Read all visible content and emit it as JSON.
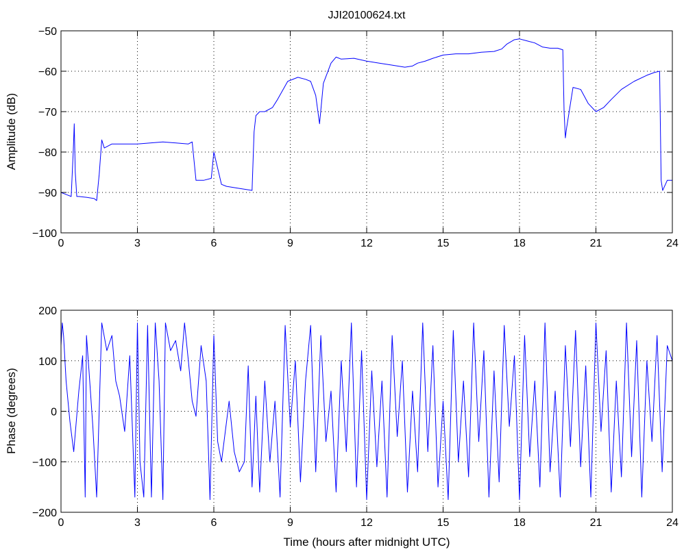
{
  "chart_data": [
    {
      "type": "line",
      "title": "JJI20100624.txt",
      "xlabel": "",
      "ylabel": "Amplitude (dB)",
      "xlim": [
        0,
        24
      ],
      "ylim": [
        -100,
        -50
      ],
      "xticks": [
        0,
        3,
        6,
        9,
        12,
        15,
        18,
        21,
        24
      ],
      "yticks": [
        -100,
        -90,
        -80,
        -70,
        -60,
        -50
      ],
      "xtick_labels": [
        "0",
        "3",
        "6",
        "9",
        "12",
        "15",
        "18",
        "21",
        "24"
      ],
      "ytick_labels": [
        "−100",
        "−90",
        "−80",
        "−70",
        "−60",
        "−50"
      ],
      "grid": true,
      "color": "#0000ff",
      "series": [
        {
          "x": [
            0,
            0.2,
            0.4,
            0.48,
            0.52,
            0.56,
            0.62,
            0.7,
            1.0,
            1.3,
            1.4,
            1.5,
            1.6,
            1.7,
            2.0,
            3.0,
            4.0,
            5.0,
            5.15,
            5.3,
            5.6,
            5.9,
            6.0,
            6.3,
            6.5,
            7.0,
            7.5,
            7.58,
            7.65,
            7.8,
            8.0,
            8.3,
            8.5,
            8.9,
            9.3,
            9.6,
            9.8,
            10.0,
            10.15,
            10.3,
            10.6,
            10.8,
            11.0,
            11.5,
            12.0,
            12.5,
            13.0,
            13.5,
            13.8,
            14.0,
            14.3,
            14.6,
            15.0,
            15.5,
            16.0,
            16.5,
            17.0,
            17.3,
            17.5,
            17.8,
            18.0,
            18.3,
            18.6,
            18.9,
            19.2,
            19.5,
            19.7,
            19.75,
            19.8,
            19.85,
            19.95,
            20.1,
            20.4,
            20.7,
            21.0,
            21.3,
            21.6,
            22.0,
            22.5,
            23.0,
            23.3,
            23.5,
            23.56,
            23.62,
            23.8,
            24.0
          ],
          "y": [
            -90,
            -90.5,
            -91,
            -80,
            -73,
            -85,
            -91,
            -91,
            -91.2,
            -91.5,
            -92,
            -85.5,
            -77,
            -79,
            -78,
            -78,
            -77.5,
            -78,
            -77.5,
            -87,
            -87,
            -86.5,
            -80,
            -88,
            -88.5,
            -89,
            -89.5,
            -75,
            -71,
            -70,
            -70,
            -69,
            -67,
            -62.5,
            -61.5,
            -62,
            -62.5,
            -66,
            -73,
            -63,
            -58,
            -56.5,
            -57,
            -56.8,
            -57.5,
            -58,
            -58.5,
            -59,
            -58.7,
            -58,
            -57.5,
            -56.8,
            -56,
            -55.7,
            -55.7,
            -55.3,
            -55.1,
            -54.5,
            -53.3,
            -52.2,
            -52,
            -52.5,
            -53,
            -54,
            -54.3,
            -54.3,
            -54.7,
            -70,
            -76.5,
            -74,
            -70,
            -64,
            -64.5,
            -68,
            -70,
            -69,
            -67,
            -64.5,
            -62.5,
            -61,
            -60.3,
            -60,
            -87,
            -89.5,
            -87,
            -87
          ]
        }
      ]
    },
    {
      "type": "line",
      "title": "",
      "xlabel": "Time (hours after midnight UTC)",
      "ylabel": "Phase (degrees)",
      "xlim": [
        0,
        24
      ],
      "ylim": [
        -200,
        200
      ],
      "xticks": [
        0,
        3,
        6,
        9,
        12,
        15,
        18,
        21,
        24
      ],
      "yticks": [
        -200,
        -100,
        0,
        100,
        200
      ],
      "xtick_labels": [
        "0",
        "3",
        "6",
        "9",
        "12",
        "15",
        "18",
        "21",
        "24"
      ],
      "ytick_labels": [
        "−200",
        "−100",
        "0",
        "100",
        "200"
      ],
      "grid": true,
      "color": "#0000ff",
      "series": [
        {
          "x": [
            0,
            0.05,
            0.1,
            0.2,
            0.35,
            0.5,
            0.7,
            0.85,
            0.95,
            1.0,
            1.1,
            1.25,
            1.4,
            1.6,
            1.8,
            2.0,
            2.15,
            2.3,
            2.5,
            2.7,
            2.9,
            3.0,
            3.1,
            3.25,
            3.4,
            3.55,
            3.7,
            3.85,
            4.0,
            4.1,
            4.3,
            4.5,
            4.7,
            4.85,
            5.0,
            5.15,
            5.3,
            5.5,
            5.7,
            5.85,
            6.0,
            6.15,
            6.3,
            6.45,
            6.6,
            6.8,
            7.0,
            7.2,
            7.35,
            7.5,
            7.65,
            7.8,
            8.0,
            8.2,
            8.4,
            8.6,
            8.8,
            9.0,
            9.2,
            9.4,
            9.6,
            9.8,
            10.0,
            10.2,
            10.4,
            10.6,
            10.8,
            11.0,
            11.2,
            11.4,
            11.6,
            11.8,
            12.0,
            12.2,
            12.4,
            12.6,
            12.8,
            13.0,
            13.2,
            13.4,
            13.6,
            13.8,
            14.0,
            14.2,
            14.4,
            14.6,
            14.8,
            15.0,
            15.2,
            15.4,
            15.6,
            15.8,
            16.0,
            16.2,
            16.4,
            16.6,
            16.8,
            17.0,
            17.2,
            17.4,
            17.6,
            17.8,
            18.0,
            18.2,
            18.4,
            18.6,
            18.8,
            19.0,
            19.2,
            19.4,
            19.6,
            19.8,
            20.0,
            20.2,
            20.4,
            20.6,
            20.8,
            21.0,
            21.2,
            21.4,
            21.6,
            21.8,
            22.0,
            22.2,
            22.4,
            22.6,
            22.8,
            23.0,
            23.2,
            23.4,
            23.6,
            23.8,
            24.0
          ],
          "y": [
            130,
            175,
            150,
            60,
            -20,
            -80,
            40,
            110,
            -170,
            150,
            80,
            -30,
            -170,
            175,
            120,
            150,
            60,
            30,
            -40,
            110,
            -170,
            175,
            -100,
            -170,
            170,
            -170,
            175,
            60,
            -175,
            175,
            120,
            140,
            80,
            175,
            100,
            20,
            -10,
            130,
            60,
            -175,
            150,
            -60,
            -100,
            -40,
            20,
            -80,
            -120,
            -100,
            90,
            -150,
            30,
            -160,
            60,
            -100,
            20,
            -170,
            170,
            -30,
            100,
            -140,
            60,
            170,
            -120,
            150,
            -60,
            40,
            -160,
            100,
            -80,
            175,
            -150,
            120,
            -175,
            80,
            -110,
            60,
            -170,
            150,
            -50,
            100,
            -160,
            40,
            -120,
            175,
            -80,
            130,
            -150,
            20,
            -175,
            160,
            -100,
            60,
            -130,
            175,
            -60,
            120,
            -170,
            80,
            -140,
            170,
            -30,
            110,
            -175,
            150,
            -90,
            60,
            -150,
            175,
            -120,
            40,
            -170,
            130,
            -70,
            160,
            -110,
            90,
            -170,
            175,
            -40,
            120,
            -160,
            60,
            -130,
            175,
            -90,
            140,
            -170,
            100,
            -60,
            150,
            -120,
            130,
            100
          ]
        }
      ]
    }
  ]
}
